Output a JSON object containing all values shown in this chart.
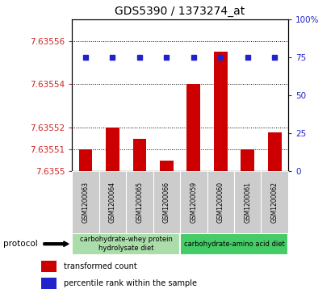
{
  "title": "GDS5390 / 1373274_at",
  "samples": [
    "GSM1200063",
    "GSM1200064",
    "GSM1200065",
    "GSM1200066",
    "GSM1200059",
    "GSM1200060",
    "GSM1200061",
    "GSM1200062"
  ],
  "bar_values": [
    7.63551,
    7.63552,
    7.635515,
    7.635505,
    7.63554,
    7.635555,
    7.63551,
    7.635518
  ],
  "percentile_values": [
    75,
    75,
    75,
    75,
    75,
    75,
    75,
    75
  ],
  "ylim_left": [
    7.6355,
    7.63557
  ],
  "ylim_right": [
    0,
    100
  ],
  "yticks_left": [
    7.6355,
    7.63551,
    7.63552,
    7.63554,
    7.63556
  ],
  "yticks_right": [
    0,
    25,
    50,
    75,
    100
  ],
  "ytick_labels_left": [
    "7.6355",
    "7.63551",
    "7.63552",
    "7.63554",
    "7.63556"
  ],
  "ytick_labels_right": [
    "0",
    "25",
    "50",
    "75",
    "100%"
  ],
  "bar_color": "#cc0000",
  "dot_color": "#2222cc",
  "grid_color": "#000000",
  "protocol_groups": [
    {
      "label": "carbohydrate-whey protein\nhydrolysate diet",
      "start": 0,
      "end": 4,
      "color": "#aaddaa"
    },
    {
      "label": "carbohydrate-amino acid diet",
      "start": 4,
      "end": 8,
      "color": "#44cc66"
    }
  ],
  "protocol_label": "protocol",
  "legend_bar_label": "transformed count",
  "legend_dot_label": "percentile rank within the sample",
  "bg_plot": "#ffffff",
  "bg_sample_area": "#cccccc",
  "title_fontsize": 10,
  "tick_fontsize": 7.5,
  "label_fontsize": 7.5
}
